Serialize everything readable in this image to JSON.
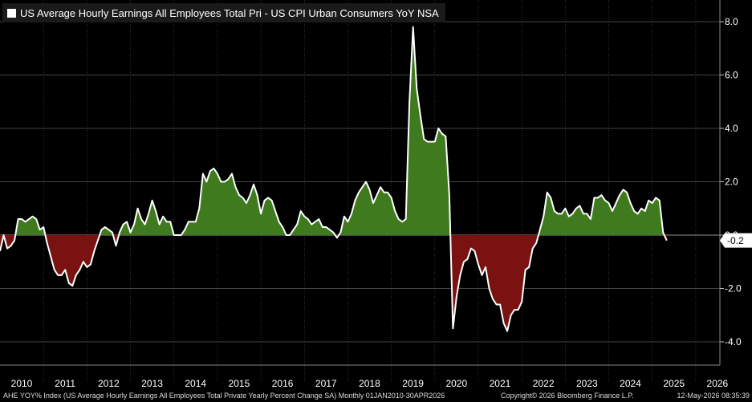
{
  "chart_data": {
    "type": "area",
    "title": "US Average Hourly Earnings All Employees Total Pri - US CPI Urban Consumers YoY NSA",
    "ylim": [
      -4.6,
      8.9
    ],
    "yticks": [
      8.0,
      6.0,
      4.0,
      2.0,
      0.0,
      -2.0,
      -4.0
    ],
    "ytick_labels": [
      "8.0",
      "6.0",
      "4.0",
      "2.0",
      "0.0",
      "-2.0",
      "-4.0"
    ],
    "last_value_label": "-0.2",
    "grid": true,
    "positive_color": "#3f7a1e",
    "negative_color": "#7a1212",
    "line_color": "#ffffff",
    "x_start": "2010-01",
    "years": [
      "2010",
      "2011",
      "2012",
      "2013",
      "2014",
      "2015",
      "2016",
      "2017",
      "2018",
      "2019",
      "2020",
      "2021",
      "2022",
      "2023",
      "2024",
      "2025",
      "2026"
    ],
    "values": [
      -0.6,
      0.0,
      -0.5,
      -0.4,
      -0.2,
      0.6,
      0.6,
      0.5,
      0.6,
      0.7,
      0.6,
      0.2,
      0.3,
      -0.3,
      -0.8,
      -1.3,
      -1.5,
      -1.5,
      -1.3,
      -1.8,
      -1.9,
      -1.5,
      -1.3,
      -1.0,
      -1.2,
      -1.1,
      -0.6,
      -0.2,
      0.2,
      0.3,
      0.2,
      0.1,
      -0.4,
      0.1,
      0.4,
      0.5,
      0.1,
      0.4,
      1.0,
      0.6,
      0.4,
      0.8,
      1.3,
      0.9,
      0.4,
      0.7,
      0.5,
      0.5,
      0.0,
      0.0,
      0.0,
      0.2,
      0.5,
      0.5,
      0.5,
      1.0,
      2.3,
      2.0,
      2.4,
      2.5,
      2.3,
      2.0,
      2.0,
      2.1,
      2.3,
      1.8,
      1.5,
      1.4,
      1.2,
      1.5,
      1.9,
      1.5,
      0.8,
      1.3,
      1.4,
      1.3,
      0.9,
      0.5,
      0.3,
      0.0,
      0.0,
      0.2,
      0.4,
      0.9,
      0.7,
      0.6,
      0.4,
      0.5,
      0.6,
      0.3,
      0.3,
      0.2,
      0.1,
      -0.1,
      0.1,
      0.7,
      0.5,
      0.8,
      1.3,
      1.6,
      1.8,
      2.0,
      1.7,
      1.2,
      1.5,
      1.8,
      1.6,
      1.6,
      1.4,
      0.9,
      0.6,
      0.5,
      0.6,
      5.0,
      7.8,
      5.5,
      4.5,
      3.6,
      3.5,
      3.5,
      3.5,
      4.0,
      3.8,
      3.7,
      1.5,
      -3.5,
      -2.3,
      -1.5,
      -1.0,
      -0.9,
      -0.5,
      -0.6,
      -1.1,
      -1.5,
      -1.2,
      -2.0,
      -2.4,
      -2.6,
      -2.6,
      -3.3,
      -3.6,
      -3.0,
      -2.8,
      -2.8,
      -2.5,
      -1.3,
      -1.2,
      -0.5,
      -0.3,
      0.2,
      0.7,
      1.6,
      1.4,
      0.9,
      0.8,
      0.8,
      1.0,
      0.7,
      0.8,
      1.0,
      1.1,
      0.8,
      0.8,
      0.6,
      1.4,
      1.4,
      1.5,
      1.3,
      1.2,
      0.9,
      1.2,
      1.5,
      1.7,
      1.6,
      1.2,
      0.9,
      0.8,
      1.0,
      0.9,
      1.3,
      1.2,
      1.4,
      1.3,
      0.1,
      -0.2
    ]
  },
  "footer": {
    "source": "AHE YOY% Index (US Average Hourly Earnings All Employees Total Private Yearly Percent Change SA) Monthly 01JAN2010-30APR2026",
    "copyright": "Copyright© 2026 Bloomberg Finance L.P.",
    "timestamp": "12-May-2026 08:35:39"
  }
}
